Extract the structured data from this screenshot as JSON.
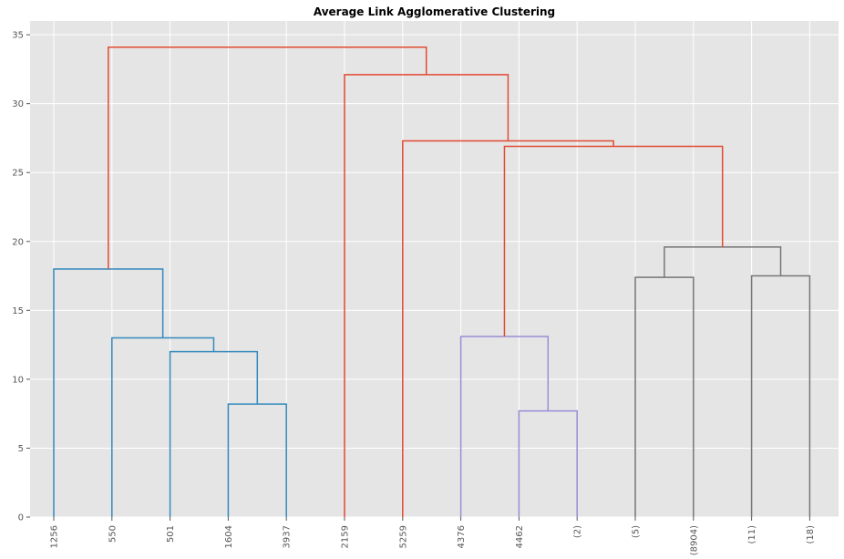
{
  "chart_data": {
    "type": "dendrogram",
    "title": "Average Link Agglomerative Clustering",
    "xlabel": "",
    "ylabel": "",
    "ylim": [
      0,
      36
    ],
    "yticks": [
      0,
      5,
      10,
      15,
      20,
      25,
      30,
      35
    ],
    "grid": true,
    "leaves": [
      "1256",
      "550",
      "501",
      "1604",
      "3937",
      "2159",
      "5259",
      "4376",
      "4462",
      "(2)",
      "(5)",
      "(8904)",
      "(11)",
      "(18)"
    ],
    "colors": {
      "background": "#e5e5e5",
      "cluster_1": "#348abd",
      "cluster_2": "#988ed5",
      "cluster_3": "#777777",
      "above_threshold": "#e24a33"
    },
    "merges": [
      {
        "left": 3,
        "right": 4,
        "height": 8.2,
        "color": "cluster_1"
      },
      {
        "left": 2,
        "right": "m0",
        "height": 12.0,
        "color": "cluster_1"
      },
      {
        "left": 1,
        "right": "m1",
        "height": 13.0,
        "color": "cluster_1"
      },
      {
        "left": 0,
        "right": "m2",
        "height": 18.0,
        "color": "cluster_1"
      },
      {
        "left": 8,
        "right": 9,
        "height": 7.7,
        "color": "cluster_2"
      },
      {
        "left": 7,
        "right": "m4",
        "height": 13.1,
        "color": "cluster_2"
      },
      {
        "left": 10,
        "right": 11,
        "height": 17.4,
        "color": "cluster_3"
      },
      {
        "left": 12,
        "right": 13,
        "height": 17.5,
        "color": "cluster_3"
      },
      {
        "left": "m6",
        "right": "m7",
        "height": 19.6,
        "color": "cluster_3"
      },
      {
        "left": "m5",
        "right": "m8",
        "height": 26.9,
        "color": "above_threshold"
      },
      {
        "left": 6,
        "right": "m9",
        "height": 27.3,
        "color": "above_threshold"
      },
      {
        "left": 5,
        "right": "m10",
        "height": 32.1,
        "color": "above_threshold"
      },
      {
        "left": "m3",
        "right": "m11",
        "height": 34.1,
        "color": "above_threshold"
      }
    ]
  }
}
